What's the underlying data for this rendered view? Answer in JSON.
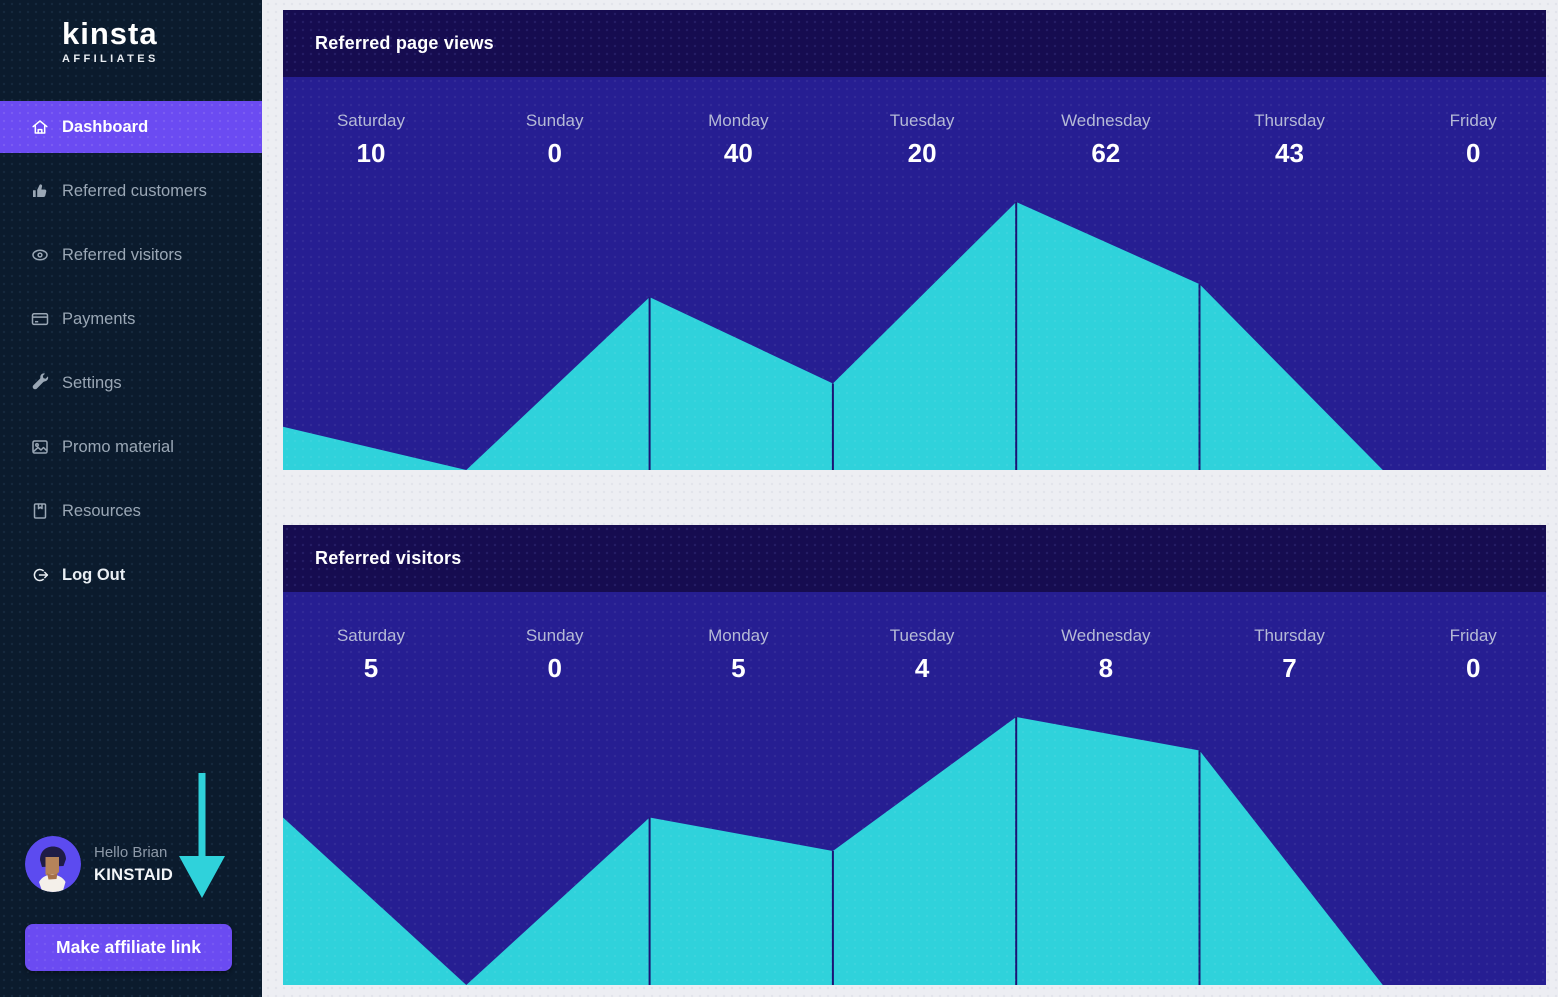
{
  "brand": {
    "name": "Kinsta",
    "sub": "AFFILIATES"
  },
  "sidebar": {
    "items": [
      {
        "label": "Dashboard",
        "icon": "home-icon",
        "active": true
      },
      {
        "label": "Referred customers",
        "icon": "thumbs-up-icon",
        "active": false
      },
      {
        "label": "Referred visitors",
        "icon": "eye-icon",
        "active": false
      },
      {
        "label": "Payments",
        "icon": "credit-card-icon",
        "active": false
      },
      {
        "label": "Settings",
        "icon": "wrench-icon",
        "active": false
      },
      {
        "label": "Promo material",
        "icon": "image-icon",
        "active": false
      },
      {
        "label": "Resources",
        "icon": "book-icon",
        "active": false
      },
      {
        "label": "Log Out",
        "icon": "logout-icon",
        "active": false
      }
    ],
    "user": {
      "greeting": "Hello Brian",
      "username": "KINSTAID"
    },
    "cta": {
      "label": "Make affiliate link"
    }
  },
  "colors": {
    "accent_purple": "#6B4BF2",
    "chart_fill_cyan": "#2FD2DB",
    "chart_background_indigo": "#261E92",
    "card_header_navy": "#160C50",
    "sidebar_background": "#0B1B2D",
    "page_background": "#EDEEF3",
    "chart_marker_line": "#1A1473"
  },
  "chart_data": [
    {
      "type": "area",
      "title": "Referred page views",
      "categories": [
        "Saturday",
        "Sunday",
        "Monday",
        "Tuesday",
        "Wednesday",
        "Thursday",
        "Friday"
      ],
      "values": [
        10,
        0,
        40,
        20,
        62,
        43,
        0
      ],
      "ylim": [
        0,
        62
      ],
      "grid": false,
      "legend": false,
      "value_labels_shown": true
    },
    {
      "type": "area",
      "title": "Referred visitors",
      "categories": [
        "Saturday",
        "Sunday",
        "Monday",
        "Tuesday",
        "Wednesday",
        "Thursday",
        "Friday"
      ],
      "values": [
        5,
        0,
        5,
        4,
        8,
        7,
        0
      ],
      "ylim": [
        0,
        8
      ],
      "grid": false,
      "legend": false,
      "value_labels_shown": true
    }
  ]
}
